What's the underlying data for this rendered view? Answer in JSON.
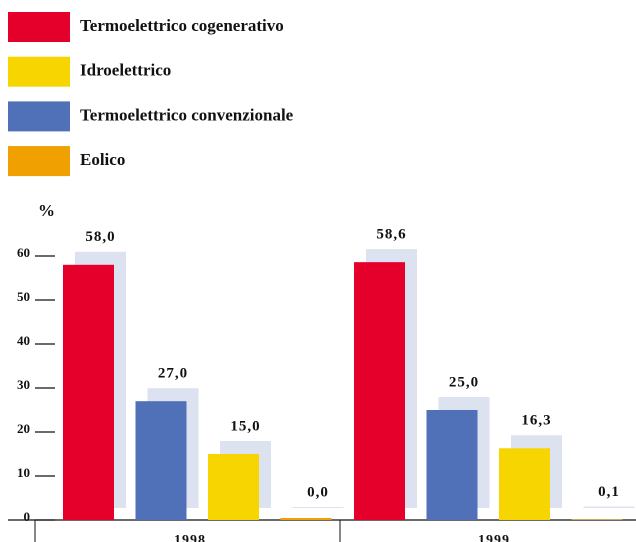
{
  "chart_data": {
    "type": "bar",
    "ylabel": "%",
    "categories": [
      "1998",
      "1999"
    ],
    "series": [
      {
        "name": "Termoelettrico cogenerativo",
        "color": "#e4002b",
        "values": [
          58.0,
          58.6
        ],
        "value_labels": [
          "58,0",
          "58,6"
        ]
      },
      {
        "name": "Idroelettrico",
        "color": "#f6d500",
        "values": [
          15.0,
          16.3
        ],
        "value_labels": [
          "15,0",
          "16,3"
        ]
      },
      {
        "name": "Termoelettrico convenzionale",
        "color": "#5070b8",
        "values": [
          27.0,
          25.0
        ],
        "value_labels": [
          "27,0",
          "25,0"
        ]
      },
      {
        "name": "Eolico",
        "color": "#f0a000",
        "values": [
          0.0,
          0.1
        ],
        "value_labels": [
          "0,0",
          "0,1"
        ]
      }
    ],
    "ylim": [
      0,
      60
    ],
    "yticks": [
      0,
      10,
      20,
      30,
      40,
      50,
      60
    ]
  }
}
